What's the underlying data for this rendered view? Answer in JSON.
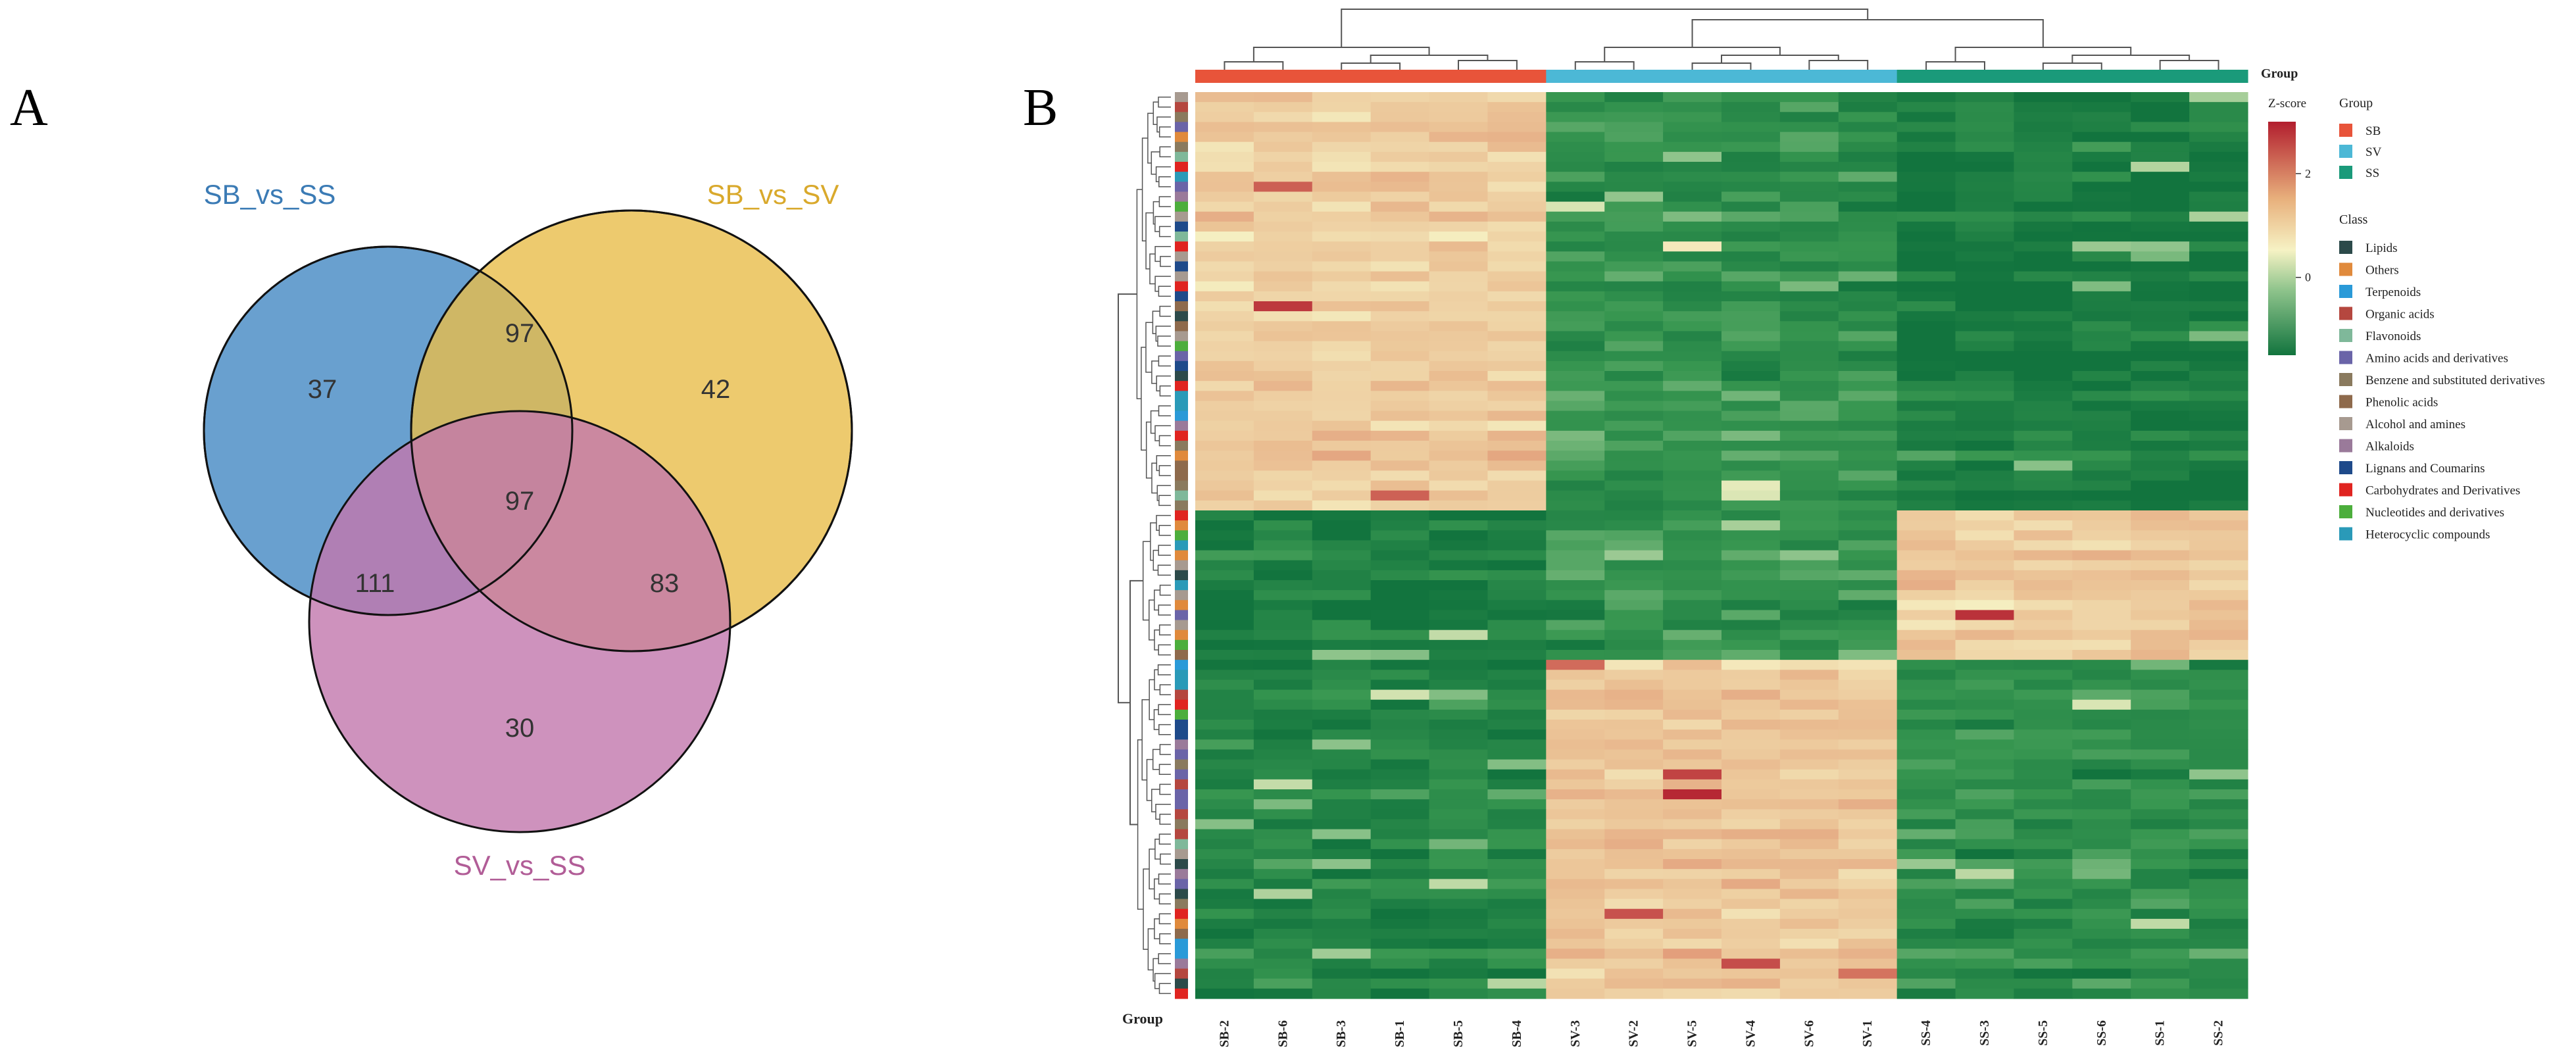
{
  "panels": {
    "a": "A",
    "b": "B"
  },
  "chart_data": [
    {
      "type": "venn",
      "sets": [
        {
          "name": "SB_vs_SS",
          "color": "#4f8fc7",
          "label_color": "#3b7bb5"
        },
        {
          "name": "SB_vs_SV",
          "color": "#e8bd4a",
          "label_color": "#d9a92c"
        },
        {
          "name": "SV_vs_SS",
          "color": "#c277ac",
          "label_color": "#b15d97"
        }
      ],
      "regions": {
        "only_SB_vs_SS": "37",
        "only_SB_vs_SV": "42",
        "only_SV_vs_SS": "30",
        "SB_vs_SS__SB_vs_SV": "97",
        "SB_vs_SS__SV_vs_SS": "111",
        "SB_vs_SV__SV_vs_SS": "83",
        "all_three": "97"
      }
    },
    {
      "type": "heatmap",
      "columns": [
        "SB-2",
        "SB-6",
        "SB-3",
        "SB-1",
        "SB-5",
        "SB-4",
        "SV-3",
        "SV-2",
        "SV-5",
        "SV-4",
        "SV-6",
        "SV-1",
        "SS-4",
        "SS-3",
        "SS-5",
        "SS-6",
        "SS-1",
        "SS-2"
      ],
      "column_groups": [
        "SB",
        "SB",
        "SB",
        "SB",
        "SB",
        "SB",
        "SV",
        "SV",
        "SV",
        "SV",
        "SV",
        "SV",
        "SS",
        "SS",
        "SS",
        "SS",
        "SS",
        "SS"
      ],
      "group_label_top": "Group",
      "group_label_bottom": "Group",
      "colorbar": {
        "title": "Z-score",
        "ticks": [
          "2",
          "0"
        ],
        "range": [
          -1.5,
          3
        ]
      },
      "legend_group": {
        "title": "Group",
        "items": [
          {
            "label": "SB",
            "color": "#e8543a"
          },
          {
            "label": "SV",
            "color": "#4cb8d6"
          },
          {
            "label": "SS",
            "color": "#1a9a7a"
          }
        ]
      },
      "legend_class": {
        "title": "Class",
        "items": [
          {
            "label": "Lipids",
            "color": "#2c4a4a"
          },
          {
            "label": "Others",
            "color": "#e08a3c"
          },
          {
            "label": "Terpenoids",
            "color": "#2a9ad8"
          },
          {
            "label": "Organic acids",
            "color": "#b5473f"
          },
          {
            "label": "Flavonoids",
            "color": "#7fb89a"
          },
          {
            "label": "Amino acids and derivatives",
            "color": "#6a64a8"
          },
          {
            "label": "Benzene and substituted derivatives",
            "color": "#8a7a5e"
          },
          {
            "label": "Phenolic acids",
            "color": "#8e6a4c"
          },
          {
            "label": "Alcohol and amines",
            "color": "#a79a90"
          },
          {
            "label": "Alkaloids",
            "color": "#9a7a9a"
          },
          {
            "label": "Lignans and Coumarins",
            "color": "#1e4a8a"
          },
          {
            "label": "Carbohydrates and Derivatives",
            "color": "#e02420"
          },
          {
            "label": "Nucleotides and derivatives",
            "color": "#4cae3c"
          },
          {
            "label": "Heterocyclic compounds",
            "color": "#2a9ab8"
          }
        ]
      },
      "row_clusters": [
        {
          "name": "cluster1",
          "rows": 42,
          "pattern": {
            "SB": 0.7,
            "SV": -1.0,
            "SS": -1.35
          }
        },
        {
          "name": "cluster2",
          "rows": 15,
          "pattern": {
            "SB": -1.3,
            "SV": -0.9,
            "SS": 0.8
          }
        },
        {
          "name": "cluster3",
          "rows": 34,
          "pattern": {
            "SB": -1.2,
            "SV": 0.85,
            "SS": -1.05
          }
        }
      ]
    }
  ]
}
